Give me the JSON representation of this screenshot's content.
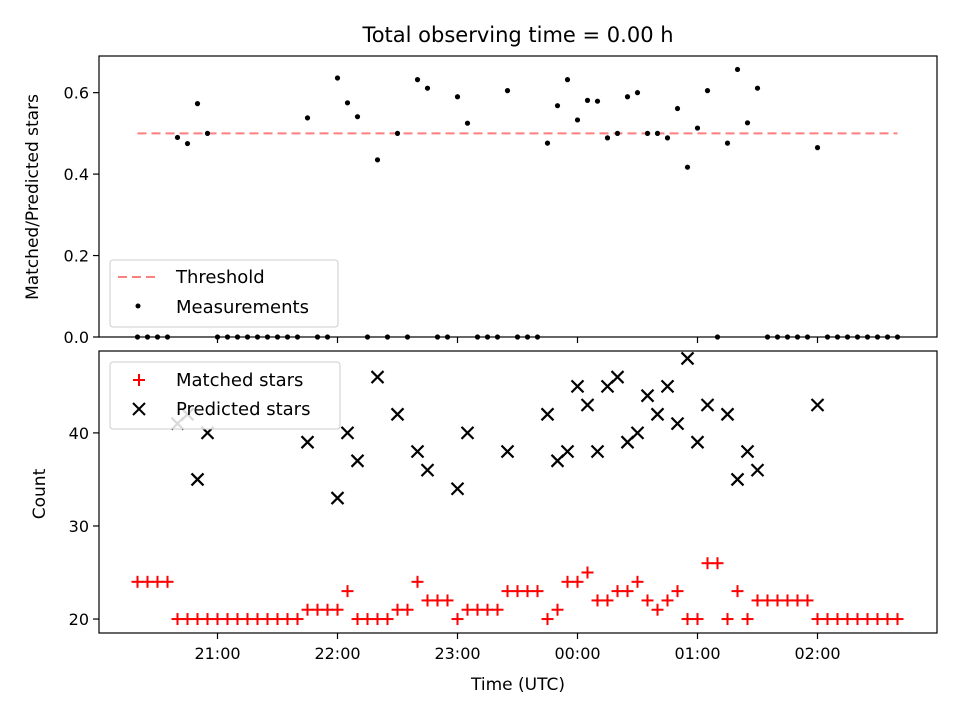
{
  "chart_data": [
    {
      "type": "scatter",
      "title": "Total observing time = 0.00 h",
      "xlabel": "",
      "ylabel": "Matched/Predicted stars",
      "ylim": [
        0,
        0.69
      ],
      "yticks": [
        "0.0",
        "0.2",
        "0.4",
        "0.6"
      ],
      "ytick_values": [
        0,
        0.2,
        0.4,
        0.6
      ],
      "xtick_values": [
        "21:00",
        "22:00",
        "23:00",
        "00:00",
        "01:00",
        "02:00"
      ],
      "threshold": {
        "name": "Threshold",
        "value": 0.5,
        "x_start": "20:20",
        "x_end": "02:40",
        "color": "#ff7f7f"
      },
      "measurements": {
        "name": "Measurements",
        "color": "#000000",
        "points": [
          [
            "20:20",
            0
          ],
          [
            "20:25",
            0
          ],
          [
            "20:30",
            0
          ],
          [
            "20:35",
            0
          ],
          [
            "20:40",
            0.49
          ],
          [
            "20:45",
            0.475
          ],
          [
            "20:50",
            0.573
          ],
          [
            "20:55",
            0.5
          ],
          [
            "21:00",
            0
          ],
          [
            "21:05",
            0
          ],
          [
            "21:10",
            0
          ],
          [
            "21:15",
            0
          ],
          [
            "21:20",
            0
          ],
          [
            "21:25",
            0
          ],
          [
            "21:30",
            0
          ],
          [
            "21:35",
            0
          ],
          [
            "21:40",
            0
          ],
          [
            "21:45",
            0.538
          ],
          [
            "21:50",
            0
          ],
          [
            "21:55",
            0
          ],
          [
            "22:00",
            0.636
          ],
          [
            "22:05",
            0.575
          ],
          [
            "22:10",
            0.541
          ],
          [
            "22:15",
            0
          ],
          [
            "22:20",
            0.435
          ],
          [
            "22:25",
            0
          ],
          [
            "22:30",
            0.5
          ],
          [
            "22:35",
            0
          ],
          [
            "22:40",
            0.632
          ],
          [
            "22:45",
            0.611
          ],
          [
            "22:50",
            0
          ],
          [
            "22:55",
            0
          ],
          [
            "23:00",
            0.59
          ],
          [
            "23:05",
            0.525
          ],
          [
            "23:10",
            0
          ],
          [
            "23:15",
            0
          ],
          [
            "23:20",
            0
          ],
          [
            "23:25",
            0.605
          ],
          [
            "23:30",
            0
          ],
          [
            "23:35",
            0
          ],
          [
            "23:40",
            0
          ],
          [
            "23:45",
            0.476
          ],
          [
            "23:50",
            0.568
          ],
          [
            "23:55",
            0.632
          ],
          [
            "00:00",
            0.533
          ],
          [
            "00:05",
            0.581
          ],
          [
            "00:10",
            0.579
          ],
          [
            "00:15",
            0.489
          ],
          [
            "00:20",
            0.5
          ],
          [
            "00:25",
            0.59
          ],
          [
            "00:30",
            0.6
          ],
          [
            "00:35",
            0.5
          ],
          [
            "00:40",
            0.5
          ],
          [
            "00:45",
            0.489
          ],
          [
            "00:50",
            0.561
          ],
          [
            "00:55",
            0.417
          ],
          [
            "01:00",
            0.513
          ],
          [
            "01:05",
            0.605
          ],
          [
            "01:10",
            0
          ],
          [
            "01:15",
            0.476
          ],
          [
            "01:20",
            0.657
          ],
          [
            "01:25",
            0.526
          ],
          [
            "01:30",
            0.611
          ],
          [
            "01:35",
            0
          ],
          [
            "01:40",
            0
          ],
          [
            "01:45",
            0
          ],
          [
            "01:50",
            0
          ],
          [
            "01:55",
            0
          ],
          [
            "02:00",
            0.465
          ],
          [
            "02:05",
            0
          ],
          [
            "02:10",
            0
          ],
          [
            "02:15",
            0
          ],
          [
            "02:20",
            0
          ],
          [
            "02:25",
            0
          ],
          [
            "02:30",
            0
          ],
          [
            "02:35",
            0
          ],
          [
            "02:40",
            0
          ]
        ]
      },
      "legend": "lower-left"
    },
    {
      "type": "scatter",
      "title": "",
      "xlabel": "Time (UTC)",
      "ylabel": "Count",
      "ylim": [
        18.5,
        48.8
      ],
      "yticks": [
        "20",
        "30",
        "40"
      ],
      "ytick_values": [
        20,
        30,
        40
      ],
      "xticks": [
        "21:00",
        "22:00",
        "23:00",
        "00:00",
        "01:00",
        "02:00"
      ],
      "series": [
        {
          "name": "Matched stars",
          "marker": "+",
          "color": "#ff0000",
          "points": [
            [
              "20:20",
              24
            ],
            [
              "20:25",
              24
            ],
            [
              "20:30",
              24
            ],
            [
              "20:35",
              24
            ],
            [
              "20:40",
              20
            ],
            [
              "20:45",
              20
            ],
            [
              "20:50",
              20
            ],
            [
              "20:55",
              20
            ],
            [
              "21:00",
              20
            ],
            [
              "21:05",
              20
            ],
            [
              "21:10",
              20
            ],
            [
              "21:15",
              20
            ],
            [
              "21:20",
              20
            ],
            [
              "21:25",
              20
            ],
            [
              "21:30",
              20
            ],
            [
              "21:35",
              20
            ],
            [
              "21:40",
              20
            ],
            [
              "21:45",
              21
            ],
            [
              "21:50",
              21
            ],
            [
              "21:55",
              21
            ],
            [
              "22:00",
              21
            ],
            [
              "22:05",
              23
            ],
            [
              "22:10",
              20
            ],
            [
              "22:15",
              20
            ],
            [
              "22:20",
              20
            ],
            [
              "22:25",
              20
            ],
            [
              "22:30",
              21
            ],
            [
              "22:35",
              21
            ],
            [
              "22:40",
              24
            ],
            [
              "22:45",
              22
            ],
            [
              "22:50",
              22
            ],
            [
              "22:55",
              22
            ],
            [
              "23:00",
              20
            ],
            [
              "23:05",
              21
            ],
            [
              "23:10",
              21
            ],
            [
              "23:15",
              21
            ],
            [
              "23:20",
              21
            ],
            [
              "23:25",
              23
            ],
            [
              "23:30",
              23
            ],
            [
              "23:35",
              23
            ],
            [
              "23:40",
              23
            ],
            [
              "23:45",
              20
            ],
            [
              "23:50",
              21
            ],
            [
              "23:55",
              24
            ],
            [
              "00:00",
              24
            ],
            [
              "00:05",
              25
            ],
            [
              "00:10",
              22
            ],
            [
              "00:15",
              22
            ],
            [
              "00:20",
              23
            ],
            [
              "00:25",
              23
            ],
            [
              "00:30",
              24
            ],
            [
              "00:35",
              22
            ],
            [
              "00:40",
              21
            ],
            [
              "00:45",
              22
            ],
            [
              "00:50",
              23
            ],
            [
              "00:55",
              20
            ],
            [
              "01:00",
              20
            ],
            [
              "01:05",
              26
            ],
            [
              "01:10",
              26
            ],
            [
              "01:15",
              20
            ],
            [
              "01:20",
              23
            ],
            [
              "01:25",
              20
            ],
            [
              "01:30",
              22
            ],
            [
              "01:35",
              22
            ],
            [
              "01:40",
              22
            ],
            [
              "01:45",
              22
            ],
            [
              "01:50",
              22
            ],
            [
              "01:55",
              22
            ],
            [
              "02:00",
              20
            ],
            [
              "02:05",
              20
            ],
            [
              "02:10",
              20
            ],
            [
              "02:15",
              20
            ],
            [
              "02:20",
              20
            ],
            [
              "02:25",
              20
            ],
            [
              "02:30",
              20
            ],
            [
              "02:35",
              20
            ],
            [
              "02:40",
              20
            ]
          ]
        },
        {
          "name": "Predicted stars",
          "marker": "x",
          "color": "#000000",
          "points": [
            [
              "20:40",
              41
            ],
            [
              "20:45",
              42
            ],
            [
              "20:50",
              35
            ],
            [
              "20:55",
              40
            ],
            [
              "21:45",
              39
            ],
            [
              "22:00",
              33
            ],
            [
              "22:05",
              40
            ],
            [
              "22:10",
              37
            ],
            [
              "22:20",
              46
            ],
            [
              "22:30",
              42
            ],
            [
              "22:40",
              38
            ],
            [
              "22:45",
              36
            ],
            [
              "23:00",
              34
            ],
            [
              "23:05",
              40
            ],
            [
              "23:25",
              38
            ],
            [
              "23:45",
              42
            ],
            [
              "23:50",
              37
            ],
            [
              "23:55",
              38
            ],
            [
              "00:00",
              45
            ],
            [
              "00:05",
              43
            ],
            [
              "00:10",
              38
            ],
            [
              "00:15",
              45
            ],
            [
              "00:20",
              46
            ],
            [
              "00:25",
              39
            ],
            [
              "00:30",
              40
            ],
            [
              "00:35",
              44
            ],
            [
              "00:40",
              42
            ],
            [
              "00:45",
              45
            ],
            [
              "00:50",
              41
            ],
            [
              "00:55",
              48
            ],
            [
              "01:00",
              39
            ],
            [
              "01:05",
              43
            ],
            [
              "01:15",
              42
            ],
            [
              "01:20",
              35
            ],
            [
              "01:25",
              38
            ],
            [
              "01:30",
              36
            ],
            [
              "02:00",
              43
            ]
          ]
        }
      ],
      "legend": "upper-left"
    }
  ]
}
